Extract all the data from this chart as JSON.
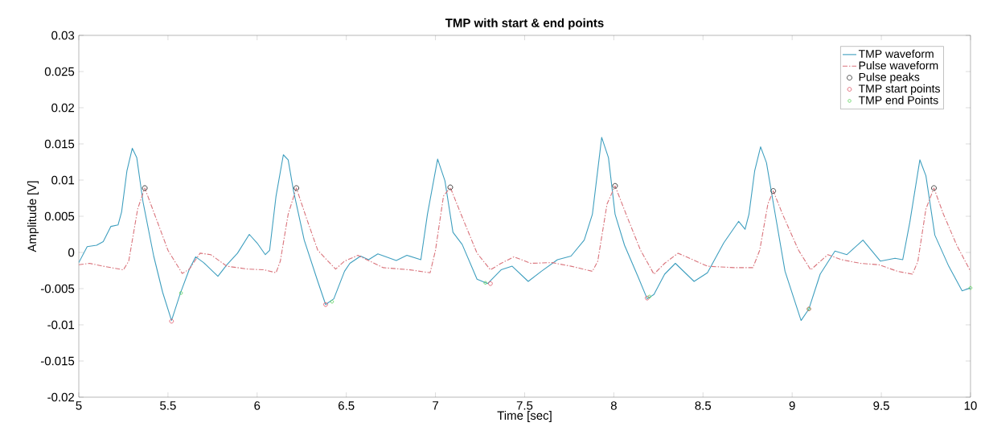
{
  "chart_data": {
    "type": "line",
    "title": "TMP with start & end points",
    "xlabel": "Time [sec]",
    "ylabel": "Amplitude [V]",
    "xlim": [
      5,
      10
    ],
    "ylim": [
      -0.02,
      0.03
    ],
    "xticks": [
      5,
      5.5,
      6,
      6.5,
      7,
      7.5,
      8,
      8.5,
      9,
      9.5,
      10
    ],
    "yticks": [
      -0.02,
      -0.015,
      -0.01,
      -0.005,
      0,
      0.005,
      0.01,
      0.015,
      0.02,
      0.025,
      0.03
    ],
    "grid": false,
    "legend": "top right",
    "series": [
      {
        "name": "TMP waveform",
        "color": "#3f9fbf",
        "line_style": "solid",
        "marker": "none",
        "x": [
          5.0,
          5.047,
          5.1,
          5.137,
          5.18,
          5.22,
          5.24,
          5.27,
          5.3,
          5.325,
          5.36,
          5.42,
          5.47,
          5.52,
          5.57,
          5.62,
          5.655,
          5.7,
          5.78,
          5.83,
          5.89,
          5.956,
          6.0,
          6.046,
          6.07,
          6.106,
          6.147,
          6.174,
          6.204,
          6.264,
          6.34,
          6.384,
          6.43,
          6.49,
          6.52,
          6.58,
          6.625,
          6.677,
          6.78,
          6.84,
          6.918,
          6.955,
          7.012,
          7.053,
          7.098,
          7.15,
          7.233,
          7.293,
          7.368,
          7.43,
          7.52,
          7.594,
          7.684,
          7.76,
          7.834,
          7.88,
          7.932,
          7.97,
          8.007,
          8.06,
          8.135,
          8.187,
          8.225,
          8.285,
          8.345,
          8.45,
          8.525,
          8.616,
          8.7,
          8.736,
          8.758,
          8.79,
          8.823,
          8.856,
          8.9,
          8.96,
          9.05,
          9.094,
          9.157,
          9.24,
          9.307,
          9.397,
          9.495,
          9.577,
          9.62,
          9.66,
          9.716,
          9.75,
          9.8,
          9.878,
          9.953,
          10.0
        ],
        "values": [
          -0.0014,
          0.0008,
          0.001,
          0.0015,
          0.0036,
          0.0038,
          0.0056,
          0.0113,
          0.0144,
          0.0131,
          0.007,
          -0.0005,
          -0.0055,
          -0.0094,
          -0.0056,
          -0.0023,
          -0.0006,
          -0.0014,
          -0.0033,
          -0.0017,
          -0.0001,
          0.0025,
          0.0013,
          -0.0003,
          0.0003,
          0.0078,
          0.0135,
          0.0128,
          0.0085,
          0.0017,
          -0.004,
          -0.0072,
          -0.0064,
          -0.0026,
          -0.0015,
          -0.0005,
          -0.001,
          -0.0002,
          -0.0011,
          -0.0004,
          -0.001,
          0.0053,
          0.0129,
          0.0099,
          0.0028,
          0.0011,
          -0.0037,
          -0.0043,
          -0.0024,
          -0.0019,
          -0.004,
          -0.0026,
          -0.001,
          -0.0005,
          0.0017,
          0.0053,
          0.0159,
          0.0131,
          0.0053,
          0.001,
          -0.0033,
          -0.0064,
          -0.0058,
          -0.003,
          -0.0015,
          -0.004,
          -0.0028,
          0.0013,
          0.0043,
          0.0032,
          0.0053,
          0.0113,
          0.0146,
          0.0124,
          0.006,
          -0.0026,
          -0.0094,
          -0.0078,
          -0.003,
          0.0002,
          -0.0003,
          0.0017,
          -0.0012,
          -0.0008,
          -0.001,
          0.0042,
          0.0128,
          0.0106,
          0.0024,
          -0.0019,
          -0.0053,
          -0.0049
        ]
      },
      {
        "name": "Pulse waveform",
        "color": "#d9737b",
        "line_style": "dashed",
        "marker": "none",
        "x": [
          5.0,
          5.06,
          5.137,
          5.25,
          5.28,
          5.33,
          5.37,
          5.42,
          5.5,
          5.58,
          5.62,
          5.68,
          5.74,
          5.83,
          5.95,
          6.04,
          6.106,
          6.13,
          6.174,
          6.22,
          6.28,
          6.34,
          6.44,
          6.49,
          6.565,
          6.632,
          6.707,
          6.857,
          6.97,
          7.0,
          7.045,
          7.083,
          7.143,
          7.233,
          7.308,
          7.368,
          7.44,
          7.534,
          7.654,
          7.76,
          7.88,
          7.91,
          7.962,
          8.007,
          8.075,
          8.15,
          8.225,
          8.285,
          8.36,
          8.525,
          8.676,
          8.78,
          8.818,
          8.864,
          8.894,
          8.946,
          9.036,
          9.104,
          9.2,
          9.277,
          9.382,
          9.487,
          9.59,
          9.675,
          9.705,
          9.75,
          9.795,
          9.848,
          9.923,
          10.0
        ],
        "values": [
          -0.0017,
          -0.0015,
          -0.0019,
          -0.0024,
          -0.0012,
          0.006,
          0.0089,
          0.0056,
          0.0003,
          -0.0029,
          -0.0023,
          -0.0001,
          -0.0003,
          -0.0019,
          -0.0023,
          -0.0024,
          -0.0028,
          -0.0012,
          0.0053,
          0.0089,
          0.0045,
          0.0003,
          -0.0023,
          -0.0012,
          -0.0004,
          -0.0012,
          -0.0021,
          -0.0024,
          -0.0028,
          0.0003,
          0.0078,
          0.009,
          0.0053,
          -0.0001,
          -0.0024,
          -0.0015,
          -0.0006,
          -0.0015,
          -0.0014,
          -0.0019,
          -0.0026,
          -0.0012,
          0.0067,
          0.0092,
          0.0049,
          0.0003,
          -0.003,
          -0.0015,
          -0.0001,
          -0.0019,
          -0.0021,
          -0.0021,
          0.0003,
          0.0067,
          0.0085,
          0.0053,
          0.0003,
          -0.0024,
          -0.0003,
          -0.001,
          -0.0015,
          -0.0017,
          -0.0026,
          -0.003,
          -0.0012,
          0.006,
          0.0089,
          0.0053,
          0.001,
          -0.0026
        ]
      },
      {
        "name": "Pulse peaks",
        "type": "scatter",
        "color": "#333333",
        "marker": "circle",
        "x": [
          5.37,
          6.22,
          7.083,
          8.007,
          8.894,
          9.795
        ],
        "values": [
          0.0089,
          0.0089,
          0.009,
          0.0092,
          0.0085,
          0.0089
        ]
      },
      {
        "name": "TMP start points",
        "type": "scatter",
        "color": "#e06070",
        "marker": "circle",
        "x": [
          5.52,
          6.384,
          7.308,
          8.187,
          9.094
        ],
        "values": [
          -0.0095,
          -0.0072,
          -0.0043,
          -0.0063,
          -0.0078
        ]
      },
      {
        "name": "TMP end Points",
        "type": "scatter",
        "color": "#5fd35f",
        "marker": "circle",
        "x": [
          5.573,
          6.42,
          7.28,
          8.2,
          9.094,
          10.0
        ],
        "values": [
          -0.0056,
          -0.0068,
          -0.0042,
          -0.0061,
          -0.0078,
          -0.0049
        ]
      }
    ]
  }
}
